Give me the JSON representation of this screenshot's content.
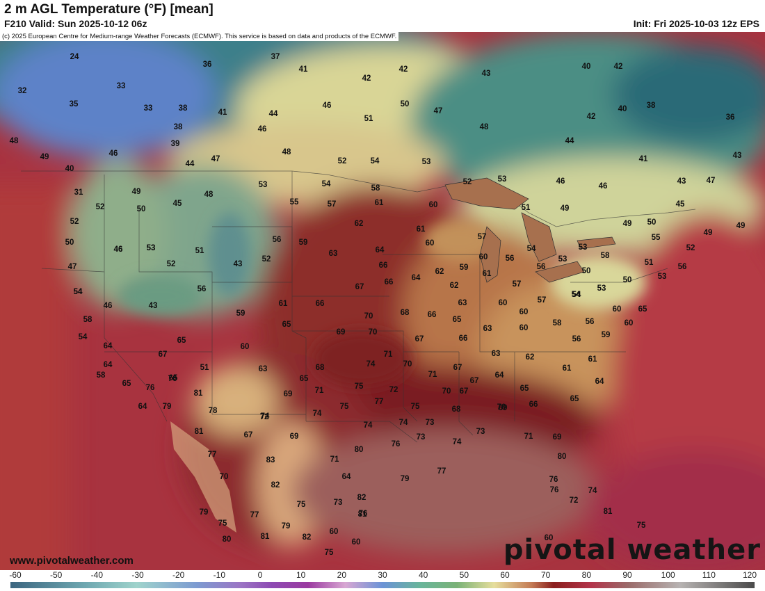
{
  "header": {
    "title": "2 m AGL Temperature (°F) [mean]",
    "valid": "F210 Valid: Sun 2025-10-12 06z",
    "init": "Init: Fri 2025-10-03 12z EPS"
  },
  "copyright": "(c) 2025 European Centre for Medium-range Weather Forecasts (ECMWF). This service is based on data and products of the ECMWF.",
  "website": "www.pivotalweather.com",
  "brand": "pivotal weather",
  "legend": {
    "ticks": [
      "-60",
      "-50",
      "-40",
      "-30",
      "-20",
      "-10",
      "0",
      "10",
      "20",
      "30",
      "40",
      "50",
      "60",
      "70",
      "80",
      "90",
      "100",
      "110",
      "120"
    ]
  },
  "temps": [
    "24",
    "37",
    "36",
    "41",
    "42",
    "42",
    "43",
    "40",
    "42",
    "32",
    "33",
    "35",
    "33",
    "38",
    "41",
    "44",
    "46",
    "50",
    "47",
    "40",
    "38",
    "36",
    "48",
    "38",
    "46",
    "51",
    "48",
    "42",
    "44",
    "40",
    "39",
    "46",
    "44",
    "47",
    "48",
    "52",
    "54",
    "53",
    "41",
    "43",
    "49",
    "31",
    "49",
    "48",
    "53",
    "54",
    "58",
    "52",
    "53",
    "46",
    "46",
    "43",
    "47",
    "52",
    "50",
    "45",
    "55",
    "57",
    "61",
    "60",
    "51",
    "49",
    "45",
    "52",
    "46",
    "53",
    "62",
    "61",
    "57",
    "49",
    "50",
    "49",
    "49",
    "50",
    "46",
    "53",
    "51",
    "52",
    "56",
    "52",
    "59",
    "63",
    "64",
    "60",
    "60",
    "56",
    "54",
    "53",
    "53",
    "58",
    "55",
    "52",
    "47",
    "43",
    "54",
    "66",
    "64",
    "62",
    "59",
    "61",
    "56",
    "50",
    "51",
    "56",
    "54",
    "56",
    "67",
    "66",
    "62",
    "57",
    "60",
    "53",
    "50",
    "53",
    "54",
    "46",
    "43",
    "61",
    "66",
    "70",
    "68",
    "66",
    "65",
    "63",
    "60",
    "57",
    "54",
    "60",
    "65",
    "58",
    "59",
    "65",
    "69",
    "70",
    "67",
    "63",
    "60",
    "58",
    "56",
    "60",
    "54",
    "64",
    "65",
    "60",
    "66",
    "56",
    "62",
    "59",
    "64",
    "67",
    "51",
    "63",
    "68",
    "74",
    "71",
    "70",
    "67",
    "63",
    "61",
    "61",
    "58",
    "76",
    "65",
    "65",
    "71",
    "75",
    "72",
    "71",
    "67",
    "64",
    "65",
    "64",
    "65",
    "76",
    "81",
    "69",
    "74",
    "75",
    "77",
    "75",
    "70",
    "67",
    "69",
    "66",
    "65",
    "64",
    "79",
    "78",
    "72",
    "74",
    "74",
    "74",
    "73",
    "68",
    "70",
    "81",
    "67",
    "69",
    "76",
    "73",
    "74",
    "73",
    "71",
    "69",
    "77",
    "83",
    "71",
    "80",
    "77",
    "80",
    "70",
    "82",
    "64",
    "79",
    "82",
    "76",
    "76",
    "75",
    "73",
    "72",
    "76",
    "74",
    "79",
    "75",
    "77",
    "81",
    "81",
    "75",
    "80",
    "81",
    "79",
    "82",
    "60",
    "60",
    "60",
    "75",
    "81",
    "59"
  ]
}
